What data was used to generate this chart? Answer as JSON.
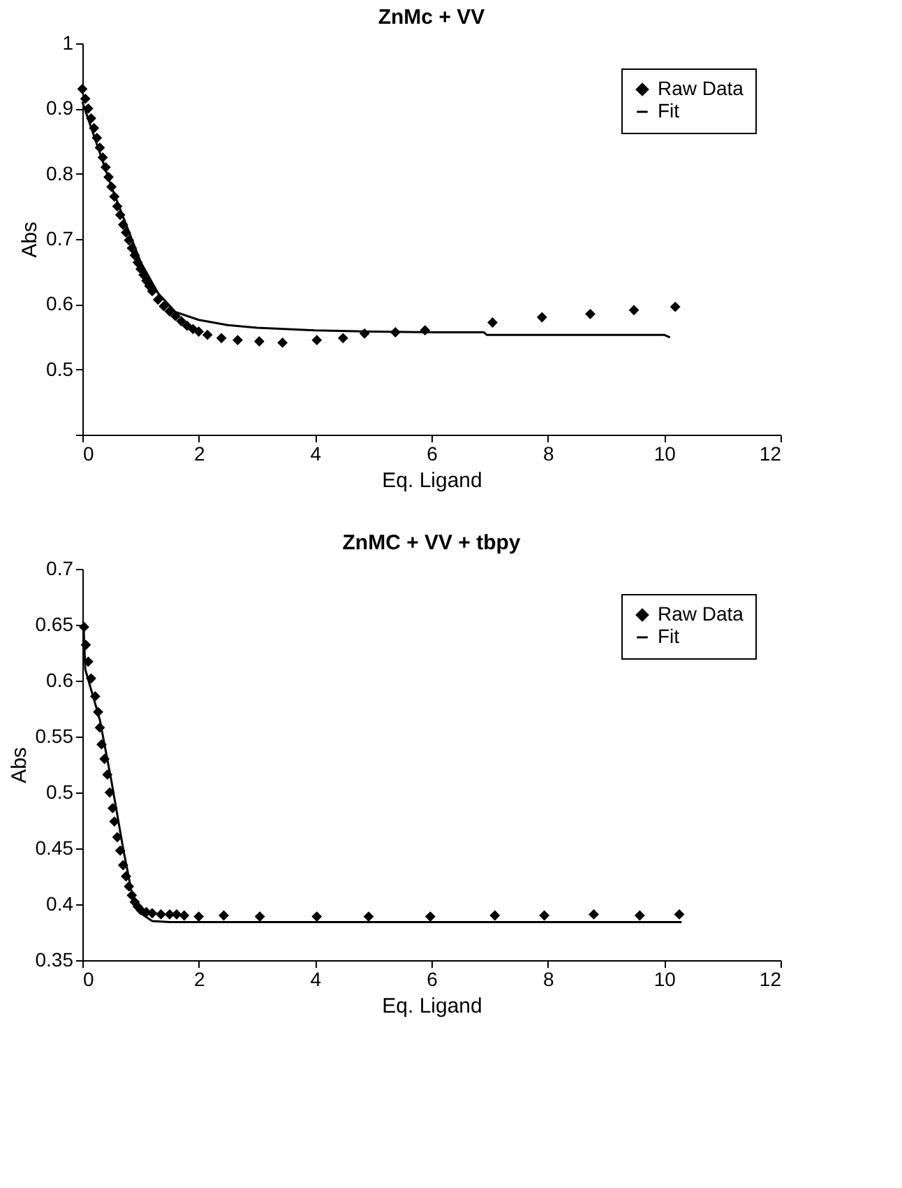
{
  "chart_data": [
    {
      "type": "scatter",
      "title": "ZnMc + VV",
      "xlabel": "Eq. Ligand",
      "ylabel": "Abs",
      "xlim": [
        0,
        12
      ],
      "ylim": [
        0.4,
        1
      ],
      "xticks": [
        0,
        2,
        4,
        6,
        8,
        10,
        12
      ],
      "yticks": [
        {
          "value": 0.4,
          "label": null
        },
        0.5,
        0.6,
        0.7,
        0.8,
        0.9,
        1
      ],
      "grid": false,
      "legend": "top right",
      "series": [
        {
          "name": "Raw Data",
          "type": "scatter",
          "marker": "diamond",
          "color": "#000000",
          "x": [
            0,
            0.05,
            0.1,
            0.15,
            0.2,
            0.25,
            0.3,
            0.35,
            0.4,
            0.45,
            0.5,
            0.55,
            0.6,
            0.65,
            0.7,
            0.75,
            0.8,
            0.85,
            0.9,
            0.95,
            1.0,
            1.05,
            1.1,
            1.15,
            1.2,
            1.3,
            1.4,
            1.5,
            1.6,
            1.7,
            1.8,
            1.9,
            2.0,
            2.15,
            2.39,
            2.67,
            3.04,
            3.44,
            4.03,
            4.48,
            4.85,
            5.38,
            5.89,
            7.05,
            7.9,
            8.73,
            9.48,
            10.19
          ],
          "values": [
            0.93,
            0.915,
            0.9,
            0.885,
            0.87,
            0.855,
            0.84,
            0.825,
            0.81,
            0.795,
            0.78,
            0.765,
            0.75,
            0.737,
            0.722,
            0.71,
            0.698,
            0.686,
            0.675,
            0.664,
            0.654,
            0.645,
            0.636,
            0.628,
            0.62,
            0.607,
            0.597,
            0.589,
            0.582,
            0.574,
            0.567,
            0.562,
            0.558,
            0.553,
            0.548,
            0.545,
            0.543,
            0.541,
            0.545,
            0.548,
            0.555,
            0.557,
            0.56,
            0.572,
            0.58,
            0.585,
            0.591,
            0.596
          ]
        },
        {
          "name": "Fit",
          "type": "line",
          "marker": "none",
          "color": "#000000",
          "x": [
            0,
            0.5,
            1.0,
            1.3,
            1.6,
            2.0,
            2.5,
            3.0,
            4.0,
            5.0,
            6.0,
            6.9,
            6.95,
            10.0,
            10.1
          ],
          "values": [
            0.91,
            0.78,
            0.665,
            0.617,
            0.588,
            0.576,
            0.568,
            0.564,
            0.56,
            0.558,
            0.557,
            0.557,
            0.553,
            0.553,
            0.549
          ]
        }
      ]
    },
    {
      "type": "scatter",
      "title": "ZnMC + VV + tbpy",
      "xlabel": "Eq. Ligand",
      "ylabel": "Abs",
      "xlim": [
        0,
        12
      ],
      "ylim": [
        0.35,
        0.7
      ],
      "xticks": [
        0,
        2,
        4,
        6,
        8,
        10,
        12
      ],
      "yticks": [
        0.35,
        0.4,
        0.45,
        0.5,
        0.55,
        0.6,
        0.65,
        0.7
      ],
      "grid": false,
      "legend": "top right",
      "series": [
        {
          "name": "Raw Data",
          "type": "scatter",
          "marker": "diamond",
          "color": "#000000",
          "x": [
            0.03,
            0.06,
            0.1,
            0.15,
            0.22,
            0.27,
            0.3,
            0.33,
            0.38,
            0.43,
            0.47,
            0.52,
            0.55,
            0.6,
            0.65,
            0.7,
            0.75,
            0.8,
            0.85,
            0.9,
            0.95,
            1.0,
            1.1,
            1.2,
            1.35,
            1.5,
            1.62,
            1.75,
            2.0,
            2.43,
            3.05,
            4.03,
            4.92,
            5.98,
            7.09,
            7.94,
            8.79,
            9.58,
            10.26
          ],
          "values": [
            0.648,
            0.632,
            0.617,
            0.602,
            0.586,
            0.572,
            0.558,
            0.543,
            0.53,
            0.516,
            0.5,
            0.486,
            0.474,
            0.46,
            0.448,
            0.435,
            0.425,
            0.416,
            0.408,
            0.402,
            0.398,
            0.395,
            0.393,
            0.392,
            0.391,
            0.391,
            0.391,
            0.39,
            0.389,
            0.39,
            0.389,
            0.389,
            0.389,
            0.389,
            0.39,
            0.39,
            0.391,
            0.39,
            0.391
          ]
        },
        {
          "name": "Fit",
          "type": "line",
          "marker": "none",
          "color": "#000000",
          "x": [
            0.02,
            0.05,
            0.3,
            0.5,
            0.7,
            0.85,
            1.0,
            1.2,
            1.5,
            10.3
          ],
          "values": [
            0.65,
            0.61,
            0.565,
            0.51,
            0.45,
            0.41,
            0.392,
            0.385,
            0.384,
            0.384
          ]
        }
      ]
    }
  ]
}
